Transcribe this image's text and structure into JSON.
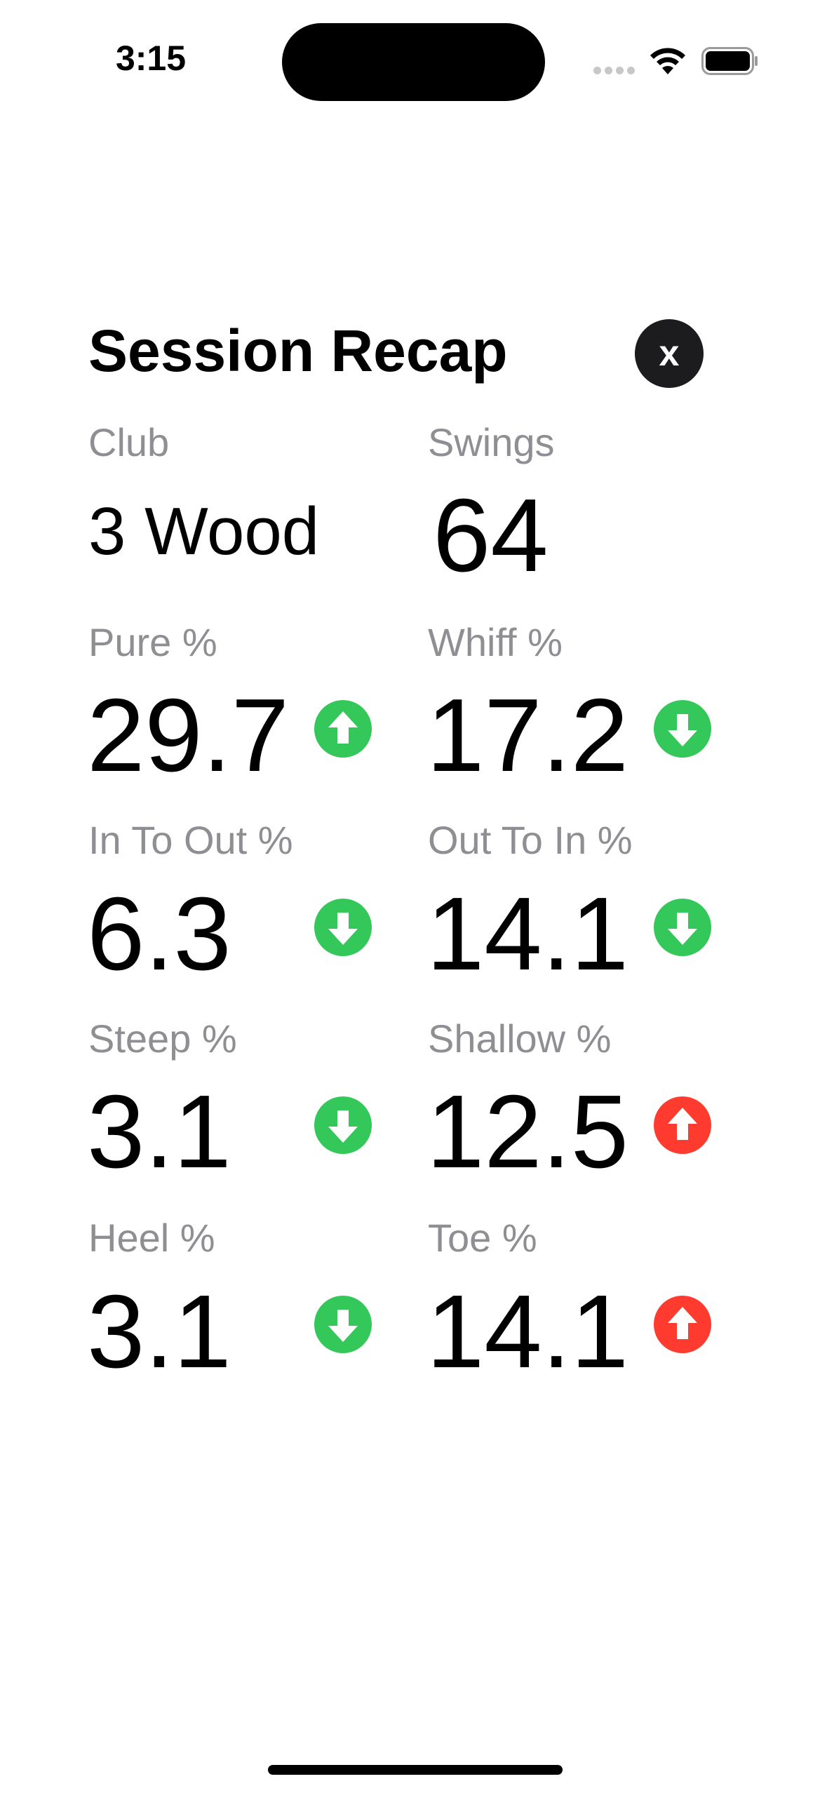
{
  "status_bar": {
    "time": "3:15",
    "icons": [
      "cellular-signal-icon",
      "wifi-icon",
      "battery-icon"
    ]
  },
  "header": {
    "title": "Session Recap",
    "close_label": "x"
  },
  "colors": {
    "trend_good": "#34c759",
    "trend_bad": "#ff3b30",
    "label_gray": "#8e8e93",
    "close_bg": "#1c1c1e"
  },
  "stats": {
    "club": {
      "label": "Club",
      "value": "3 Wood"
    },
    "swings": {
      "label": "Swings",
      "value": "64"
    },
    "pure": {
      "label": "Pure %",
      "value": "29.7",
      "trend": "up",
      "trend_color": "green",
      "icon": "arrow-up-circle-icon"
    },
    "whiff": {
      "label": "Whiff %",
      "value": "17.2",
      "trend": "down",
      "trend_color": "green",
      "icon": "arrow-down-circle-icon"
    },
    "in_to_out": {
      "label": "In To Out %",
      "value": "6.3",
      "trend": "down",
      "trend_color": "green",
      "icon": "arrow-down-circle-icon"
    },
    "out_to_in": {
      "label": "Out To In %",
      "value": "14.1",
      "trend": "down",
      "trend_color": "green",
      "icon": "arrow-down-circle-icon"
    },
    "steep": {
      "label": "Steep %",
      "value": "3.1",
      "trend": "down",
      "trend_color": "green",
      "icon": "arrow-down-circle-icon"
    },
    "shallow": {
      "label": "Shallow %",
      "value": "12.5",
      "trend": "up",
      "trend_color": "red",
      "icon": "arrow-up-circle-icon"
    },
    "heel": {
      "label": "Heel %",
      "value": "3.1",
      "trend": "down",
      "trend_color": "green",
      "icon": "arrow-down-circle-icon"
    },
    "toe": {
      "label": "Toe %",
      "value": "14.1",
      "trend": "up",
      "trend_color": "red",
      "icon": "arrow-up-circle-icon"
    }
  }
}
